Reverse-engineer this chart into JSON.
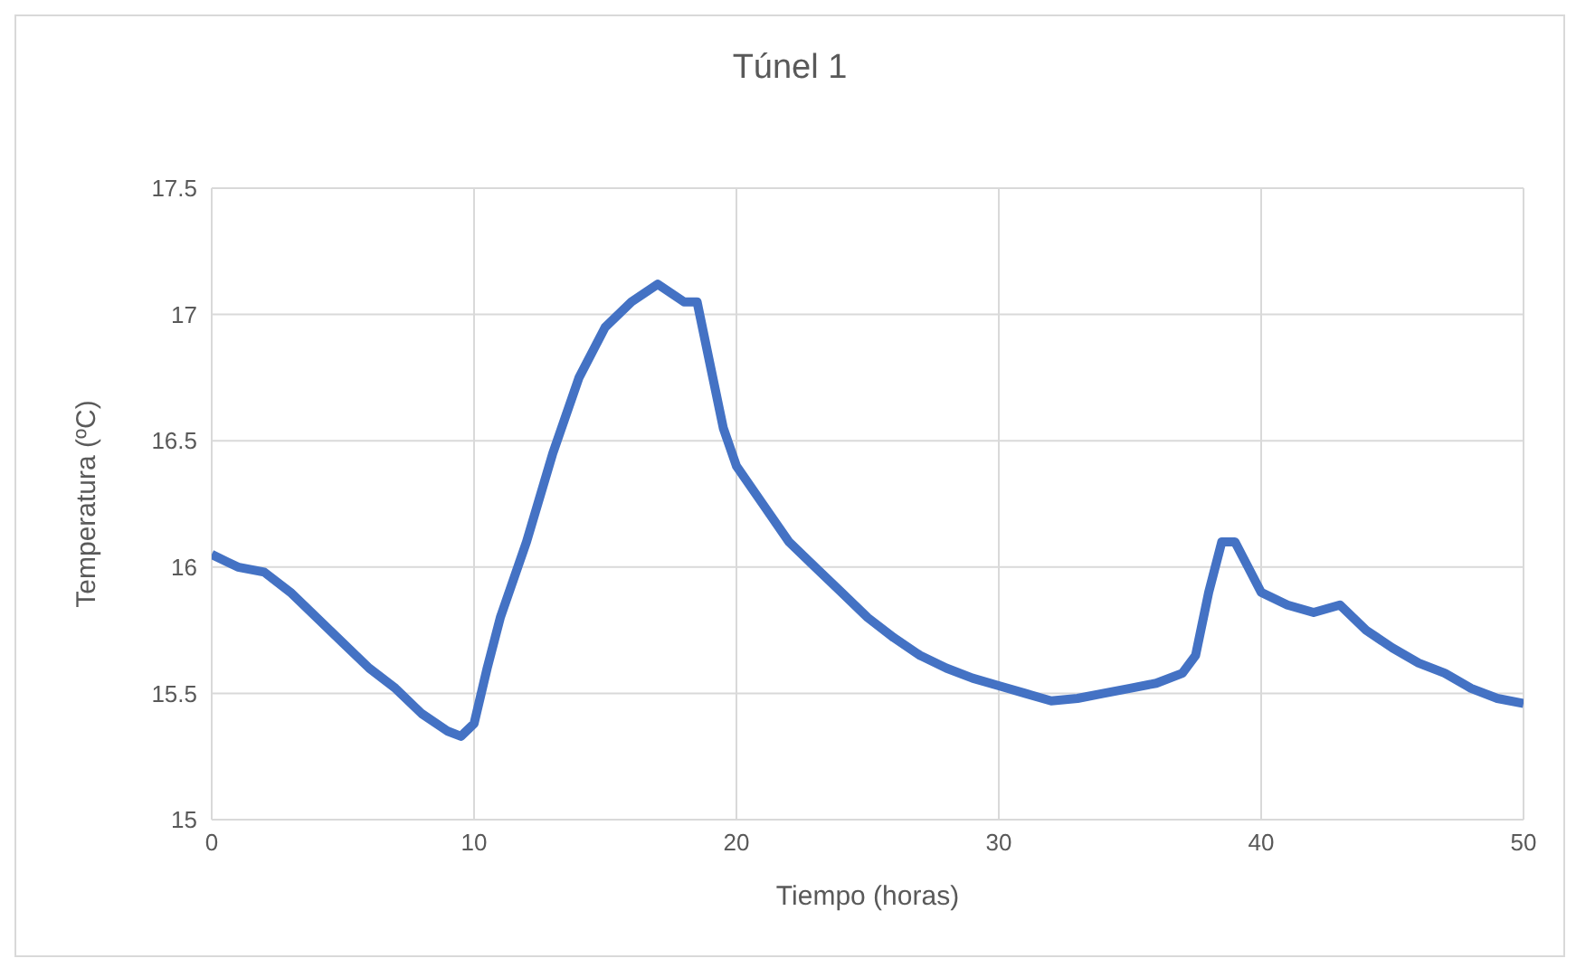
{
  "chart_data": {
    "type": "line",
    "title": "Túnel 1",
    "xlabel": "Tiempo (horas)",
    "ylabel": "Temperatura (ºC)",
    "x": [
      0,
      1,
      2,
      3,
      4,
      5,
      6,
      7,
      8,
      9,
      9.5,
      10,
      10.5,
      11,
      12,
      13,
      14,
      15,
      16,
      17,
      18,
      18.5,
      19,
      19.5,
      20,
      21,
      22,
      23,
      24,
      25,
      26,
      27,
      28,
      29,
      30,
      31,
      32,
      33,
      34,
      35,
      36,
      37,
      37.5,
      38,
      38.5,
      39,
      39.5,
      40,
      41,
      42,
      43,
      44,
      45,
      46,
      47,
      48,
      49,
      50
    ],
    "series": [
      {
        "color": "#4472c4",
        "values": [
          16.05,
          16.0,
          15.98,
          15.9,
          15.8,
          15.7,
          15.6,
          15.52,
          15.42,
          15.35,
          15.33,
          15.38,
          15.6,
          15.8,
          16.1,
          16.45,
          16.75,
          16.95,
          17.05,
          17.12,
          17.05,
          17.05,
          16.8,
          16.55,
          16.4,
          16.25,
          16.1,
          16.0,
          15.9,
          15.8,
          15.72,
          15.65,
          15.6,
          15.56,
          15.53,
          15.5,
          15.47,
          15.48,
          15.5,
          15.52,
          15.54,
          15.58,
          15.65,
          15.9,
          16.1,
          16.1,
          16.0,
          15.9,
          15.85,
          15.82,
          15.85,
          15.75,
          15.68,
          15.62,
          15.58,
          15.52,
          15.48,
          15.46
        ]
      }
    ],
    "xlim": [
      0,
      50
    ],
    "xticks": [
      0,
      10,
      20,
      30,
      40,
      50
    ],
    "ylim": [
      15,
      17.5
    ],
    "yticks": [
      15,
      15.5,
      16,
      16.5,
      17,
      17.5
    ],
    "grid": true,
    "marker": "none",
    "line_style": "solid"
  }
}
